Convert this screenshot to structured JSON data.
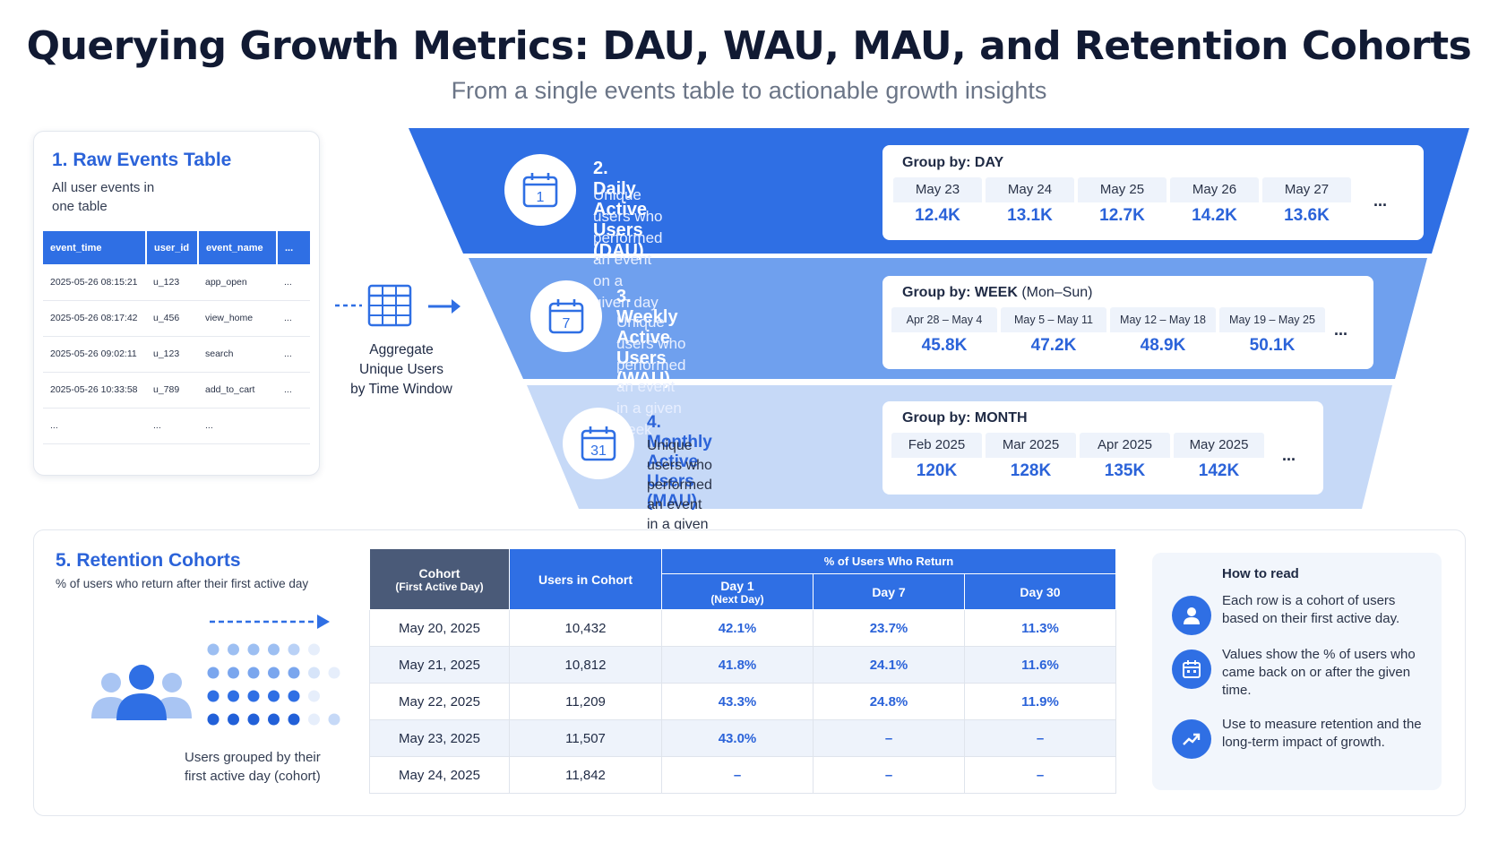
{
  "header": {
    "title": "Querying Growth Metrics: DAU, WAU, MAU, and Retention Cohorts",
    "subtitle": "From a single events table to actionable growth insights"
  },
  "raw_events": {
    "title": "1. Raw Events Table",
    "desc_line1": "All user events in",
    "desc_line2": "one table",
    "columns": [
      "event_time",
      "user_id",
      "event_name",
      "..."
    ],
    "rows": [
      [
        "2025-05-26 08:15:21",
        "u_123",
        "app_open",
        "..."
      ],
      [
        "2025-05-26 08:17:42",
        "u_456",
        "view_home",
        "..."
      ],
      [
        "2025-05-26 09:02:11",
        "u_123",
        "search",
        "..."
      ],
      [
        "2025-05-26 10:33:58",
        "u_789",
        "add_to_cart",
        "..."
      ],
      [
        "...",
        "...",
        "...",
        ""
      ]
    ]
  },
  "aggregate": {
    "line1": "Aggregate",
    "line2": "Unique Users",
    "line3": "by Time Window"
  },
  "dau": {
    "title": "2. Daily Active Users (DAU)",
    "desc_line1": "Unique users who performed",
    "desc_line2": "an event on a given day",
    "icon_text": "1",
    "group_label": "Group by: DAY",
    "group_note": "",
    "cells": [
      {
        "period": "May 23",
        "value": "12.4K"
      },
      {
        "period": "May 24",
        "value": "13.1K"
      },
      {
        "period": "May 25",
        "value": "12.7K"
      },
      {
        "period": "May 26",
        "value": "14.2K"
      },
      {
        "period": "May 27",
        "value": "13.6K"
      }
    ],
    "more": "..."
  },
  "wau": {
    "title": "3. Weekly Active Users (WAU)",
    "desc_line1": "Unique users who performed",
    "desc_line2": "an event in a given week",
    "icon_text": "7",
    "group_label": "Group by: WEEK",
    "group_note": " (Mon–Sun)",
    "cells": [
      {
        "period": "Apr 28 – May 4",
        "value": "45.8K"
      },
      {
        "period": "May 5 – May 11",
        "value": "47.2K"
      },
      {
        "period": "May 12 – May 18",
        "value": "48.9K"
      },
      {
        "period": "May 19 – May 25",
        "value": "50.1K"
      }
    ],
    "more": "..."
  },
  "mau": {
    "title": "4. Monthly Active Users (MAU)",
    "desc_line1": "Unique users who performed",
    "desc_line2": "an event in a given month",
    "icon_text": "31",
    "group_label": "Group by: MONTH",
    "group_note": "",
    "cells": [
      {
        "period": "Feb 2025",
        "value": "120K"
      },
      {
        "period": "Mar 2025",
        "value": "128K"
      },
      {
        "period": "Apr 2025",
        "value": "135K"
      },
      {
        "period": "May 2025",
        "value": "142K"
      }
    ],
    "more": "..."
  },
  "retention": {
    "title": "5. Retention Cohorts",
    "desc": "% of users who return after their first active day",
    "caption_line1": "Users grouped by their",
    "caption_line2": "first active day (cohort)",
    "headers": {
      "cohort": "Cohort",
      "cohort_sub": "(First Active Day)",
      "users": "Users in Cohort",
      "return_group": "% of Users Who Return",
      "day1": "Day 1",
      "day1_sub": "(Next Day)",
      "day7": "Day 7",
      "day30": "Day 30"
    },
    "rows": [
      {
        "cohort": "May 20, 2025",
        "users": "10,432",
        "day1": "42.1%",
        "day7": "23.7%",
        "day30": "11.3%"
      },
      {
        "cohort": "May 21, 2025",
        "users": "10,812",
        "day1": "41.8%",
        "day7": "24.1%",
        "day30": "11.6%"
      },
      {
        "cohort": "May 22, 2025",
        "users": "11,209",
        "day1": "43.3%",
        "day7": "24.8%",
        "day30": "11.9%"
      },
      {
        "cohort": "May 23, 2025",
        "users": "11,507",
        "day1": "43.0%",
        "day7": "–",
        "day30": "–"
      },
      {
        "cohort": "May 24, 2025",
        "users": "11,842",
        "day1": "–",
        "day7": "–",
        "day30": "–"
      }
    ]
  },
  "how_to_read": {
    "title": "How to read",
    "items": [
      {
        "icon": "user-icon",
        "text": "Each row is a cohort of users based on their first active day."
      },
      {
        "icon": "calendar-icon",
        "text": "Values show the % of users who came back on or after the given time."
      },
      {
        "icon": "trend-up-icon",
        "text": "Use to measure retention and the long-term impact of growth."
      }
    ]
  },
  "colors": {
    "band_dau": "#2f6fe4",
    "band_wau": "#6fa0ee",
    "band_mau": "#c6d9f7",
    "accent": "#2b63d9",
    "header_dark": "#4a5a78"
  }
}
